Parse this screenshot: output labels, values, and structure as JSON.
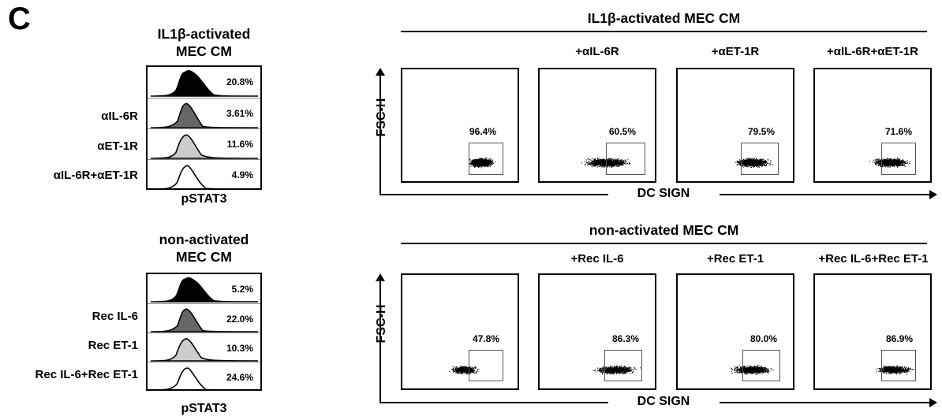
{
  "panel_letter": "C",
  "histograms": [
    {
      "title_line1": "IL1β-activated",
      "title_line2": "MEC CM",
      "xlabel": "pSTAT3",
      "rows": [
        {
          "label": "",
          "pct": "20.8%",
          "fill": "#000000"
        },
        {
          "label": "αIL-6R",
          "pct": "3.61%",
          "fill": "#666666"
        },
        {
          "label": "αET-1R",
          "pct": "11.6%",
          "fill": "#cccccc"
        },
        {
          "label": "αIL-6R+αET-1R",
          "pct": "4.9%",
          "fill": "none"
        }
      ]
    },
    {
      "title_line1": "non-activated",
      "title_line2": "MEC CM",
      "xlabel": "pSTAT3",
      "rows": [
        {
          "label": "",
          "pct": "5.2%",
          "fill": "#000000"
        },
        {
          "label": "Rec IL-6",
          "pct": "22.0%",
          "fill": "#666666"
        },
        {
          "label": "Rec ET-1",
          "pct": "10.3%",
          "fill": "#cccccc"
        },
        {
          "label": "Rec IL-6+Rec ET-1",
          "pct": "24.6%",
          "fill": "none"
        }
      ]
    }
  ],
  "flow_groups": [
    {
      "title": "IL1β-activated MEC CM",
      "ylabel": "FSC-H",
      "xlabel": "DC SIGN",
      "panels": [
        {
          "label": "",
          "pct": "96.4%"
        },
        {
          "label": "+αIL-6R",
          "pct": "60.5%"
        },
        {
          "label": "+αET-1R",
          "pct": "79.5%"
        },
        {
          "label": "+αIL-6R+αET-1R",
          "pct": "71.6%"
        }
      ]
    },
    {
      "title": "non-activated MEC CM",
      "ylabel": "FSC-H",
      "xlabel": "DC SIGN",
      "panels": [
        {
          "label": "",
          "pct": "47.8%"
        },
        {
          "label": "+Rec IL-6",
          "pct": "86.3%"
        },
        {
          "label": "+Rec ET-1",
          "pct": "80.0%"
        },
        {
          "label": "+Rec IL-6+Rec ET-1",
          "pct": "86.9%"
        }
      ]
    }
  ]
}
